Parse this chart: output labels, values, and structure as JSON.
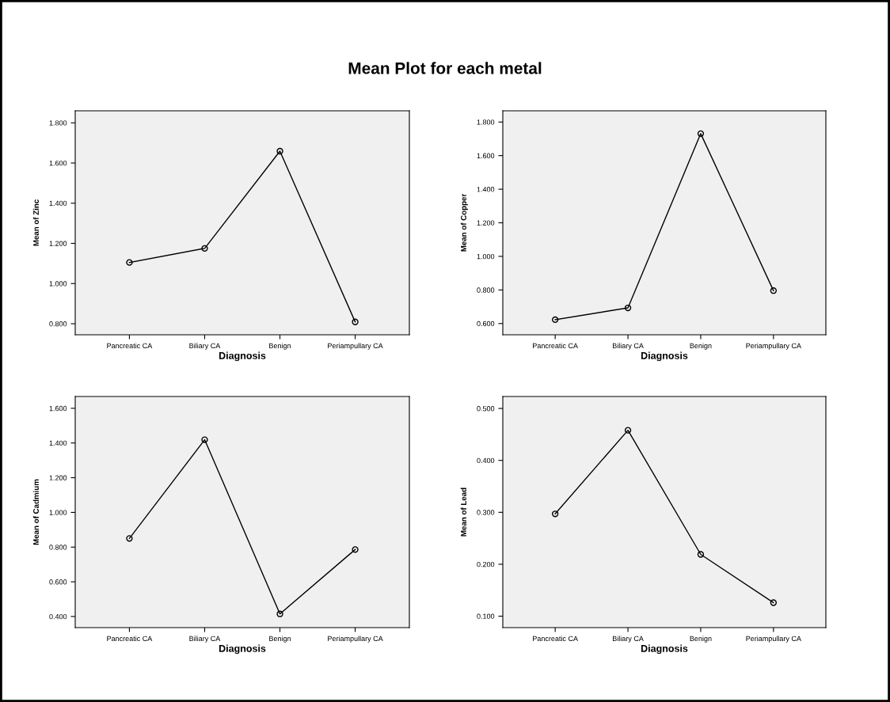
{
  "chart_data": [
    {
      "type": "line",
      "title": "Mean Plot for each metal",
      "xlabel": "Diagnosis",
      "ylabel": "Mean of Zinc",
      "categories": [
        "Pancreatic CA",
        "Biliary CA",
        "Benign",
        "Periampullary CA"
      ],
      "series": [
        {
          "color": "#000000",
          "values": [
            1.105,
            1.175,
            1.659,
            0.809
          ]
        }
      ],
      "marker": "circle",
      "line_style": "solid",
      "grid": false,
      "legend": false,
      "ylim": [
        0.745,
        1.86
      ],
      "yticks": [
        {
          "value": 0.8,
          "label": "0.800"
        },
        {
          "value": 1.0,
          "label": "1.000"
        },
        {
          "value": 1.2,
          "label": "1.200"
        },
        {
          "value": 1.4,
          "label": "1.400"
        },
        {
          "value": 1.6,
          "label": "1.600"
        },
        {
          "value": 1.8,
          "label": "1.800"
        }
      ]
    },
    {
      "type": "line",
      "xlabel": "Diagnosis",
      "ylabel": "Mean of Copper",
      "categories": [
        "Pancreatic CA",
        "Biliary CA",
        "Benign",
        "Periampullary CA"
      ],
      "series": [
        {
          "color": "#000000",
          "values": [
            0.623,
            0.693,
            1.731,
            0.796
          ]
        }
      ],
      "marker": "circle",
      "line_style": "solid",
      "grid": false,
      "legend": false,
      "ylim": [
        0.533,
        1.867
      ],
      "yticks": [
        {
          "value": 0.6,
          "label": "0.600"
        },
        {
          "value": 0.8,
          "label": "0.800"
        },
        {
          "value": 1.0,
          "label": "1.000"
        },
        {
          "value": 1.2,
          "label": "1.200"
        },
        {
          "value": 1.4,
          "label": "1.400"
        },
        {
          "value": 1.6,
          "label": "1.600"
        },
        {
          "value": 1.8,
          "label": "1.800"
        }
      ]
    },
    {
      "type": "line",
      "xlabel": "Diagnosis",
      "ylabel": "Mean of Cadmium",
      "categories": [
        "Pancreatic CA",
        "Biliary CA",
        "Benign",
        "Periampullary CA"
      ],
      "series": [
        {
          "color": "#000000",
          "values": [
            0.85,
            1.419,
            0.415,
            0.786
          ]
        }
      ],
      "marker": "circle",
      "line_style": "solid",
      "grid": false,
      "legend": false,
      "ylim": [
        0.336,
        1.668
      ],
      "yticks": [
        {
          "value": 0.4,
          "label": "0.400"
        },
        {
          "value": 0.6,
          "label": "0.600"
        },
        {
          "value": 0.8,
          "label": "0.800"
        },
        {
          "value": 1.0,
          "label": "1.000"
        },
        {
          "value": 1.2,
          "label": "1.200"
        },
        {
          "value": 1.4,
          "label": "1.400"
        },
        {
          "value": 1.6,
          "label": "1.600"
        }
      ]
    },
    {
      "type": "line",
      "xlabel": "Diagnosis",
      "ylabel": "Mean of Lead",
      "categories": [
        "Pancreatic CA",
        "Biliary CA",
        "Benign",
        "Periampullary CA"
      ],
      "series": [
        {
          "color": "#000000",
          "values": [
            0.297,
            0.458,
            0.219,
            0.126
          ]
        }
      ],
      "marker": "circle",
      "line_style": "solid",
      "grid": false,
      "legend": false,
      "ylim": [
        0.078,
        0.523
      ],
      "yticks": [
        {
          "value": 0.1,
          "label": "0.100"
        },
        {
          "value": 0.2,
          "label": "0.200"
        },
        {
          "value": 0.3,
          "label": "0.300"
        },
        {
          "value": 0.4,
          "label": "0.400"
        },
        {
          "value": 0.5,
          "label": "0.500"
        }
      ]
    }
  ]
}
